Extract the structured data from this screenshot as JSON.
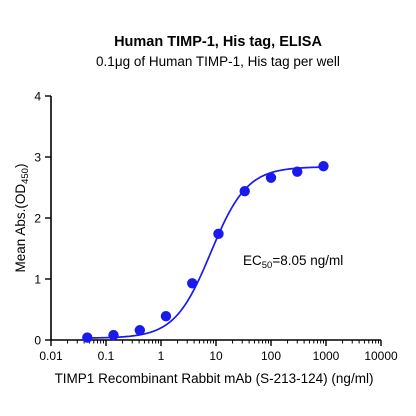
{
  "chart_data": {
    "type": "scatter",
    "title": "Human TIMP-1, His tag, ELISA",
    "subtitle": "0.1μg of Human TIMP-1, His tag per well",
    "xlabel": "TIMP1 Recombinant Rabbit mAb (S-213-124) (ng/ml)",
    "ylabel": {
      "main": "Mean Abs.(OD",
      "sub": "450",
      "close": ")"
    },
    "x_scale": "log",
    "xlim": [
      0.01,
      10000
    ],
    "ylim": [
      0,
      4
    ],
    "x_ticks": [
      "0.01",
      "0.1",
      "1",
      "10",
      "100",
      "1000",
      "10000"
    ],
    "x_tick_values": [
      0.01,
      0.1,
      1,
      10,
      100,
      1000,
      10000
    ],
    "y_ticks": [
      "0",
      "1",
      "2",
      "3",
      "4"
    ],
    "y_tick_values": [
      0,
      1,
      2,
      3,
      4
    ],
    "grid": false,
    "series": [
      {
        "x": [
          0.0457,
          0.137,
          0.412,
          1.23,
          3.7,
          11.1,
          33.3,
          100,
          300,
          900
        ],
        "y": [
          0.04,
          0.08,
          0.16,
          0.39,
          0.93,
          1.74,
          2.44,
          2.66,
          2.76,
          2.85
        ],
        "color": "#1a1aee",
        "fit": {
          "model": "4PL",
          "bottom": 0.03,
          "top": 2.84,
          "ec50": 8.05,
          "hill": 1.32
        }
      }
    ],
    "annotations": [
      {
        "label": "EC",
        "sub": "50",
        "value": "=8.05 ng/ml"
      }
    ]
  }
}
